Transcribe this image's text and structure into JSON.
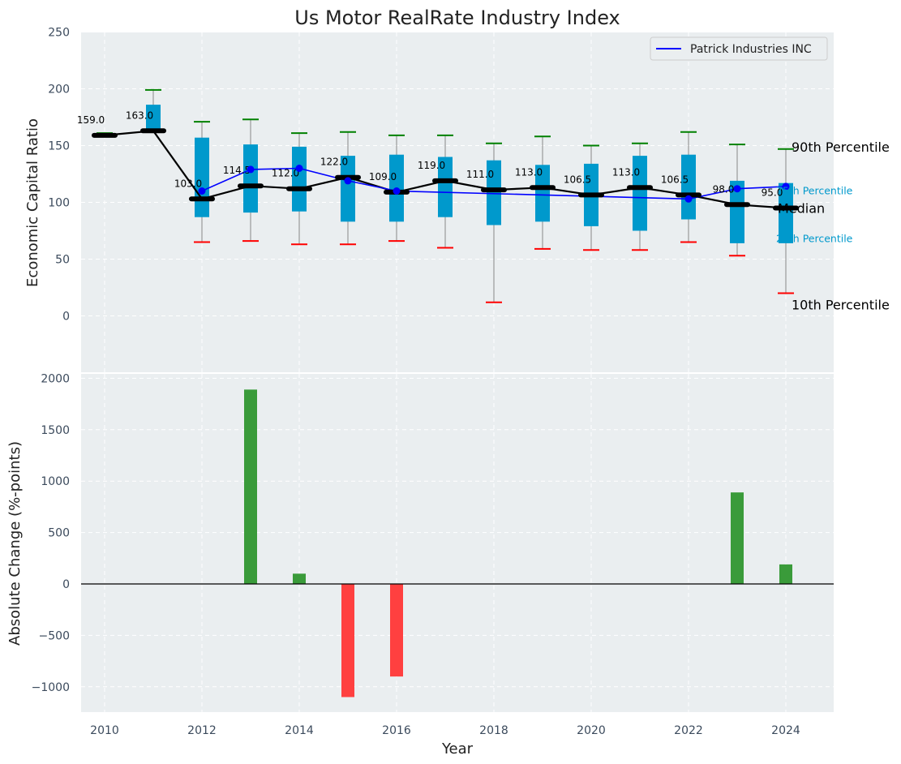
{
  "chart_data": [
    {
      "type": "box",
      "title": "Us Motor RealRate Industry Index",
      "ylabel": "Economic Capital Ratio",
      "ylim": [
        -50,
        250
      ],
      "yticks": [
        0,
        50,
        100,
        150,
        200,
        250
      ],
      "grid": true,
      "legend": {
        "position": "top-right",
        "entries": [
          "Patrick Industries INC"
        ]
      },
      "years": [
        2010,
        2011,
        2012,
        2013,
        2014,
        2015,
        2016,
        2017,
        2018,
        2019,
        2020,
        2021,
        2022,
        2023,
        2024
      ],
      "p10": [
        159,
        163,
        65,
        66,
        63,
        63,
        66,
        60,
        12,
        59,
        58,
        58,
        65,
        53,
        20
      ],
      "p25": [
        159,
        163,
        87,
        91,
        92,
        83,
        83,
        87,
        80,
        83,
        79,
        75,
        85,
        64,
        64
      ],
      "median": [
        159,
        163,
        103,
        114.5,
        112,
        122,
        109,
        119,
        111,
        113,
        106.5,
        113,
        106.5,
        98,
        95
      ],
      "median_labels": [
        "159.0",
        "163.0",
        "103.0",
        "114.5",
        "112.0",
        "122.0",
        "109.0",
        "119.0",
        "111.0",
        "113.0",
        "106.5",
        "113.0",
        "106.5",
        "98.0",
        "95.0"
      ],
      "p75": [
        159,
        186,
        157,
        151,
        149,
        141,
        142,
        140,
        137,
        133,
        134,
        141,
        142,
        119,
        117
      ],
      "p90": [
        161,
        199,
        171,
        173,
        161,
        162,
        159,
        159,
        152,
        158,
        150,
        152,
        162,
        151,
        147
      ],
      "series": [
        {
          "name": "Patrick Industries INC",
          "color": "#0000ff",
          "values": [
            null,
            null,
            110,
            129,
            130,
            119,
            110,
            null,
            null,
            null,
            null,
            null,
            103,
            112,
            114
          ]
        }
      ],
      "percentile_labels": {
        "p90": "90th Percentile",
        "p75": "75th Percentile",
        "median": "Median",
        "p25": "25th Percentile",
        "p10": "10th Percentile"
      }
    },
    {
      "type": "bar",
      "xlabel": "Year",
      "ylabel": "Absolute Change (%-points)",
      "ylim": [
        -1230,
        2050
      ],
      "yticks": [
        -1000,
        -500,
        0,
        500,
        1000,
        1500,
        2000
      ],
      "xticks": [
        2010,
        2012,
        2014,
        2016,
        2018,
        2020,
        2022,
        2024
      ],
      "x": [
        2013,
        2014,
        2015,
        2016,
        2023,
        2024
      ],
      "values": [
        1890,
        100,
        -1100,
        -900,
        890,
        190
      ]
    }
  ],
  "colors": {
    "box_fill": "#0099cc",
    "median_line": "#000000",
    "whisker": "#888888",
    "p90_cap": "#008000",
    "p10_cap": "#ff0000",
    "bar_positive": "#3a9b3a",
    "bar_negative": "#ff4040",
    "axes_bg": "#eaeef0"
  }
}
